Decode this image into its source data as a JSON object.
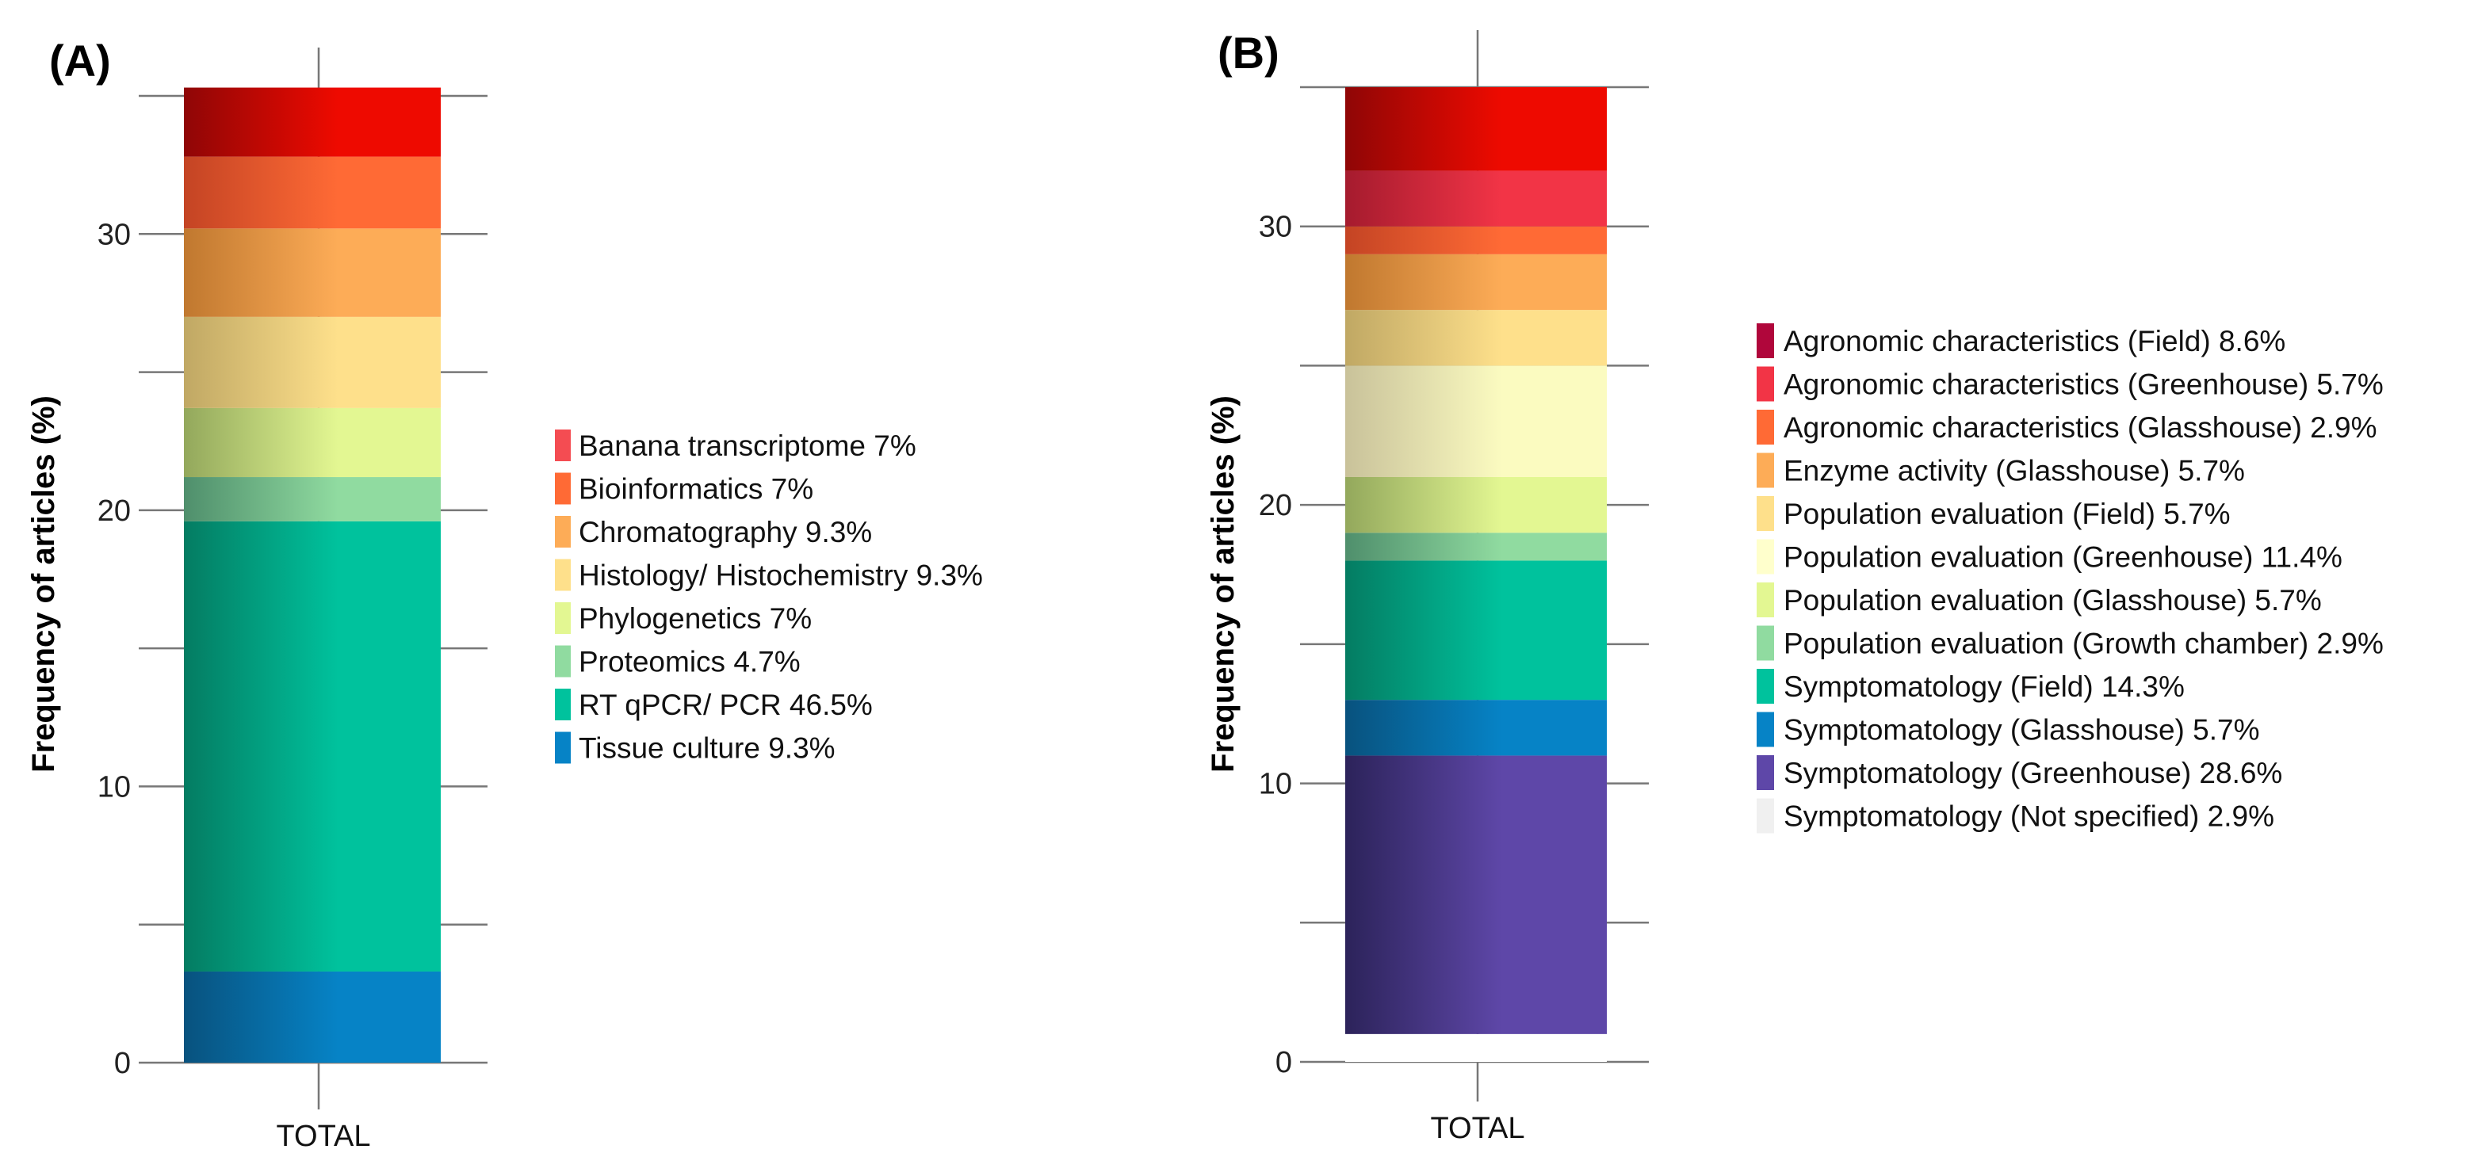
{
  "chart_data": [
    {
      "type": "bar",
      "stacked": true,
      "panel_label": "(A)",
      "categories": [
        "TOTAL"
      ],
      "ylabel": "Frequency of articles (%)",
      "xlabel": "",
      "ylim": [
        0,
        35
      ],
      "yticks": [
        0,
        10,
        20,
        30
      ],
      "y_minor_ticks": [
        5,
        15,
        25
      ],
      "legend_position": "right",
      "series": [
        {
          "name": "Tissue culture",
          "label": "Tissue culture 9.3%",
          "values": [
            3.3
          ],
          "color": "#0683c6",
          "color_dark": "#08527e"
        },
        {
          "name": "RT qPCR/ PCR",
          "label": "RT qPCR/ PCR 46.5%",
          "values": [
            16.3
          ],
          "color": "#00c29d",
          "color_dark": "#047c62"
        },
        {
          "name": "Proteomics",
          "label": "Proteomics 4.7%",
          "values": [
            1.6
          ],
          "color": "#90dba0",
          "color_dark": "#4f8f6c"
        },
        {
          "name": "Phylogenetics",
          "label": "Phylogenetics 7%",
          "values": [
            2.5
          ],
          "color": "#e3f792",
          "color_dark": "#93a85c"
        },
        {
          "name": "Histology/ Histochemistry",
          "label": "Histology/ Histochemistry 9.3%",
          "values": [
            3.3
          ],
          "color": "#fee08b",
          "color_dark": "#c0a864"
        },
        {
          "name": "Chromatography",
          "label": "Chromatography 9.3%",
          "values": [
            3.2
          ],
          "color": "#fdac57",
          "color_dark": "#c0782f"
        },
        {
          "name": "Bioinformatics",
          "label": "Bioinformatics 7%",
          "values": [
            2.6
          ],
          "color": "#ff6a35",
          "color_dark": "#c44424"
        },
        {
          "name": "Banana transcriptome",
          "label": "Banana transcriptome 7%",
          "values": [
            2.5
          ],
          "color": "#ee0a00",
          "color_dark": "#8f0606"
        }
      ],
      "legend_entries": [
        {
          "label": "Banana transcriptome 7%",
          "color": "#f44c52"
        },
        {
          "label": "Bioinformatics 7%",
          "color": "#ff6a35"
        },
        {
          "label": "Chromatography 9.3%",
          "color": "#fdac57"
        },
        {
          "label": "Histology/ Histochemistry 9.3%",
          "color": "#fee08b"
        },
        {
          "label": "Phylogenetics 7%",
          "color": "#e3f792"
        },
        {
          "label": "Proteomics 4.7%",
          "color": "#90dba0"
        },
        {
          "label": "RT qPCR/ PCR 46.5%",
          "color": "#00c29d"
        },
        {
          "label": "Tissue culture 9.3%",
          "color": "#0683c6"
        }
      ]
    },
    {
      "type": "bar",
      "stacked": true,
      "panel_label": "(B)",
      "categories": [
        "TOTAL"
      ],
      "ylabel": "Frequency of articles (%)",
      "xlabel": "",
      "ylim": [
        0,
        35
      ],
      "yticks": [
        0,
        10,
        20,
        30
      ],
      "y_minor_ticks": [
        5,
        15,
        25
      ],
      "legend_position": "right",
      "series": [
        {
          "name": "Symptomatology (Not specified)",
          "label": "Symptomatology (Not specified) 2.9%",
          "values": [
            1
          ],
          "color": "#ffffff",
          "color_dark": "#ffffff"
        },
        {
          "name": "Symptomatology (Greenhouse)",
          "label": "Symptomatology (Greenhouse) 28.6%",
          "values": [
            10
          ],
          "color": "#5e47a8",
          "color_dark": "#2c235a"
        },
        {
          "name": "Symptomatology (Glasshouse)",
          "label": "Symptomatology (Glasshouse) 5.7%",
          "values": [
            2
          ],
          "color": "#0683c6",
          "color_dark": "#08527e"
        },
        {
          "name": "Symptomatology (Field)",
          "label": "Symptomatology (Field) 14.3%",
          "values": [
            5
          ],
          "color": "#00c29d",
          "color_dark": "#047c62"
        },
        {
          "name": "Population evaluation (Growth chamber)",
          "label": "Population evaluation (Growth chamber) 2.9%",
          "values": [
            1
          ],
          "color": "#90dba0",
          "color_dark": "#4f8f6c"
        },
        {
          "name": "Population evaluation (Glasshouse)",
          "label": "Population evaluation (Glasshouse) 5.7%",
          "values": [
            2
          ],
          "color": "#e3f792",
          "color_dark": "#93a85c"
        },
        {
          "name": "Population evaluation (Greenhouse)",
          "label": "Population evaluation (Greenhouse) 11.4%",
          "values": [
            4
          ],
          "color": "#fbfbc0",
          "color_dark": "#c9c29a"
        },
        {
          "name": "Population evaluation (Field)",
          "label": "Population evaluation (Field) 5.7%",
          "values": [
            2
          ],
          "color": "#fee08b",
          "color_dark": "#c0a864"
        },
        {
          "name": "Enzyme activity (Glasshouse)",
          "label": "Enzyme activity (Glasshouse) 5.7%",
          "values": [
            2
          ],
          "color": "#fdac57",
          "color_dark": "#c0782f"
        },
        {
          "name": "Agronomic characteristics (Glasshouse)",
          "label": "Agronomic characteristics (Glasshouse) 2.9%",
          "values": [
            1
          ],
          "color": "#ff6a35",
          "color_dark": "#c44424"
        },
        {
          "name": "Agronomic characteristics (Greenhouse)",
          "label": "Agronomic characteristics (Greenhouse) 5.7%",
          "values": [
            2
          ],
          "color": "#f23446",
          "color_dark": "#a51b2e"
        },
        {
          "name": "Agronomic characteristics (Field)",
          "label": "Agronomic characteristics (Field) 8.6%",
          "values": [
            3
          ],
          "color": "#ee0a00",
          "color_dark": "#8f0606"
        }
      ],
      "legend_entries": [
        {
          "label": "Agronomic characteristics (Field) 8.6%",
          "color": "#b0063b"
        },
        {
          "label": "Agronomic characteristics (Greenhouse) 5.7%",
          "color": "#f23446"
        },
        {
          "label": "Agronomic characteristics (Glasshouse) 2.9%",
          "color": "#ff6a35"
        },
        {
          "label": "Enzyme activity (Glasshouse) 5.7%",
          "color": "#fdac57"
        },
        {
          "label": "Population evaluation (Field) 5.7%",
          "color": "#fee08b"
        },
        {
          "label": "Population evaluation (Greenhouse) 11.4%",
          "color": "#ffffcc"
        },
        {
          "label": "Population evaluation (Glasshouse) 5.7%",
          "color": "#e3f792"
        },
        {
          "label": "Population evaluation (Growth chamber) 2.9%",
          "color": "#90dba0"
        },
        {
          "label": "Symptomatology (Field) 14.3%",
          "color": "#00c29d"
        },
        {
          "label": "Symptomatology (Glasshouse) 5.7%",
          "color": "#0683c6"
        },
        {
          "label": "Symptomatology (Greenhouse) 28.6%",
          "color": "#5e47a8"
        },
        {
          "label": "Symptomatology (Not specified) 2.9%",
          "color": "#f0f0f0"
        }
      ]
    }
  ]
}
